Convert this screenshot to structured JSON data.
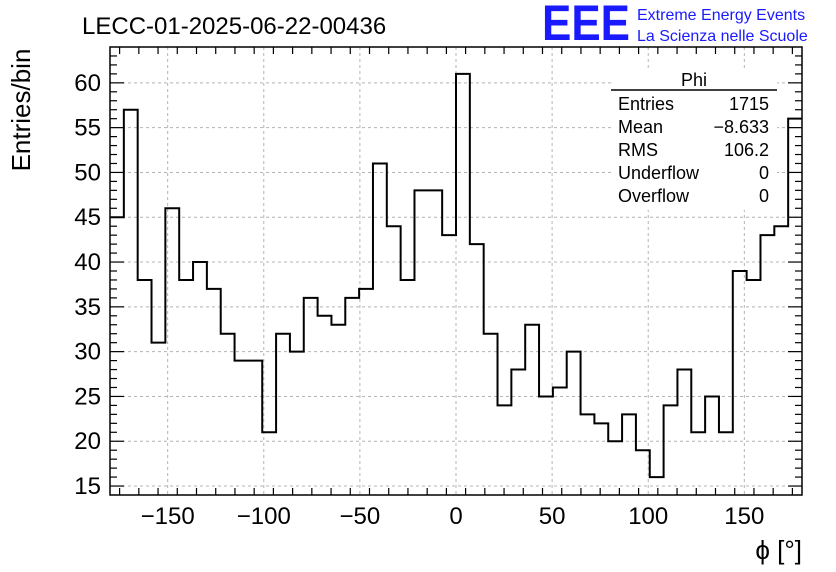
{
  "chart_data": {
    "type": "bar",
    "style": "step-histogram",
    "title": "LECC-01-2025-06-22-00436",
    "xlabel": "ϕ [°]",
    "ylabel": "Entries/bin",
    "xlim": [
      -180,
      180
    ],
    "ylim": [
      14,
      64
    ],
    "bin_width": 7.2,
    "grid": true,
    "x_ticks": [
      -150,
      -100,
      -50,
      0,
      50,
      100,
      150
    ],
    "x_tick_labels": [
      "−150",
      "−100",
      "−50",
      "0",
      "50",
      "100",
      "150"
    ],
    "y_ticks": [
      15,
      20,
      25,
      30,
      35,
      40,
      45,
      50,
      55,
      60
    ],
    "y_tick_labels": [
      "15",
      "20",
      "25",
      "30",
      "35",
      "40",
      "45",
      "50",
      "55",
      "60"
    ],
    "values": [
      45,
      57,
      38,
      31,
      46,
      38,
      40,
      37,
      32,
      29,
      29,
      21,
      32,
      30,
      36,
      34,
      33,
      36,
      37,
      51,
      44,
      38,
      48,
      48,
      43,
      61,
      42,
      32,
      24,
      28,
      33,
      25,
      26,
      30,
      23,
      22,
      20,
      23,
      19,
      16,
      24,
      28,
      21,
      25,
      21,
      39,
      38,
      43,
      44,
      56
    ],
    "stats": {
      "name": "Phi",
      "rows": [
        {
          "label": "Entries",
          "value": "1715"
        },
        {
          "label": "Mean",
          "value": "−8.633"
        },
        {
          "label": "RMS",
          "value": "106.2"
        },
        {
          "label": "Underflow",
          "value": "0"
        },
        {
          "label": "Overflow",
          "value": "0"
        }
      ]
    },
    "logo": {
      "mark": "EEE",
      "line1": "Extreme Energy Events",
      "line2": "La Scienza nelle Scuole",
      "color": "#1a1aff"
    }
  }
}
